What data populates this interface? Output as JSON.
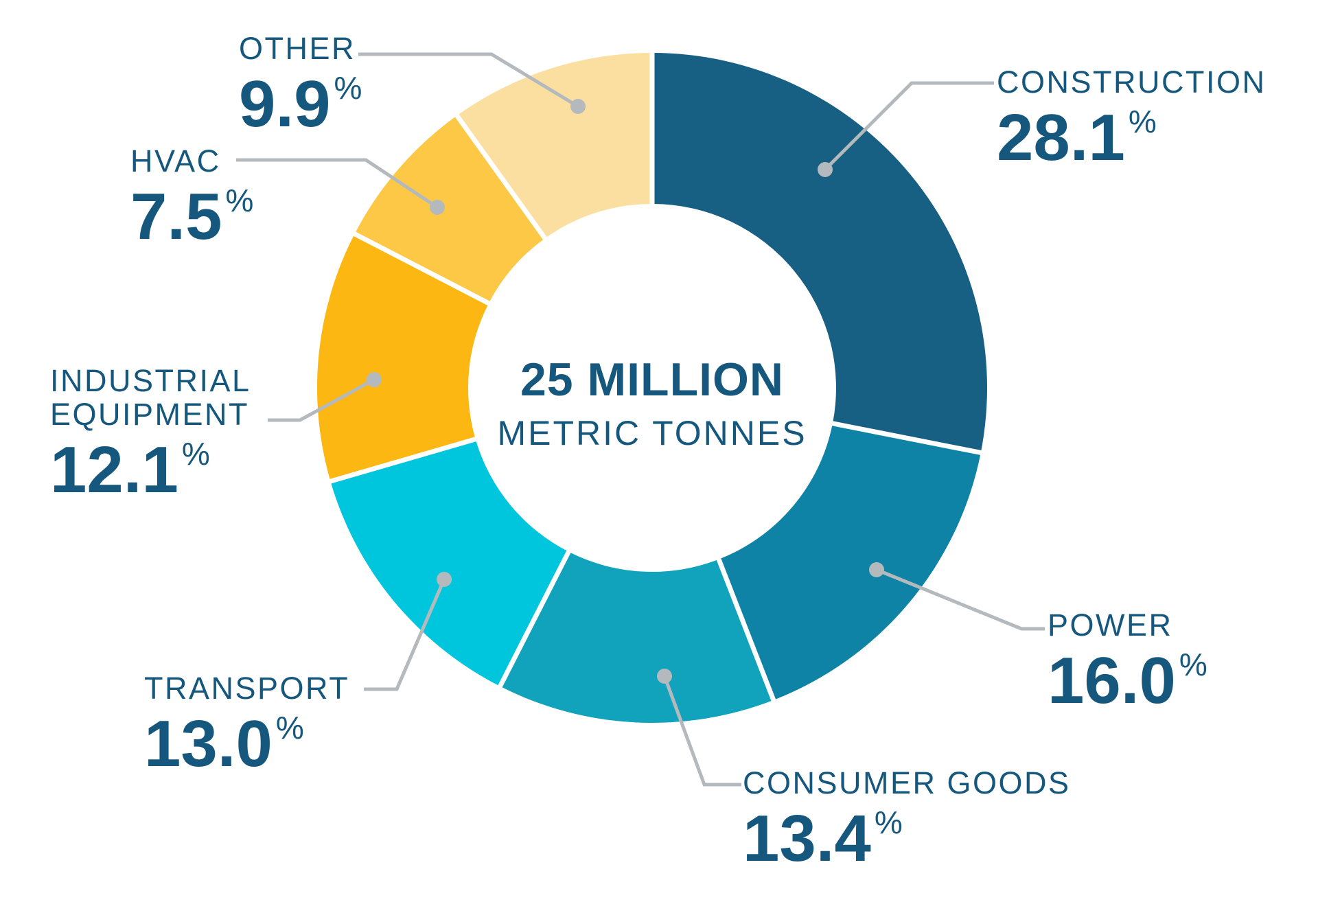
{
  "chart_data": {
    "type": "pie",
    "variant": "donut",
    "direction": "clockwise",
    "start_angle_deg": 0,
    "unit": "%",
    "center_label": {
      "line1": "25 MILLION",
      "line2": "METRIC TONNES"
    },
    "segments": [
      {
        "label": "CONSTRUCTION",
        "value": 28.1,
        "value_text": "28.1",
        "color": "#185F84"
      },
      {
        "label": "POWER",
        "value": 16.0,
        "value_text": "16.0",
        "color": "#0E83A6"
      },
      {
        "label": "CONSUMER GOODS",
        "value": 13.4,
        "value_text": "13.4",
        "color": "#10A3BB"
      },
      {
        "label": "TRANSPORT",
        "value": 13.0,
        "value_text": "13.0",
        "color": "#00C6DD"
      },
      {
        "label": "INDUSTRIAL EQUIPMENT",
        "value": 12.1,
        "value_text": "12.1",
        "color": "#FCB712"
      },
      {
        "label": "HVAC",
        "value": 7.5,
        "value_text": "7.5",
        "color": "#FCC846"
      },
      {
        "label": "OTHER",
        "value": 9.9,
        "value_text": "9.9",
        "color": "#FADFA0"
      }
    ],
    "colors": {
      "label_text": "#16587D",
      "leader_line": "#B4B9BD",
      "background": "#FFFFFF"
    }
  }
}
